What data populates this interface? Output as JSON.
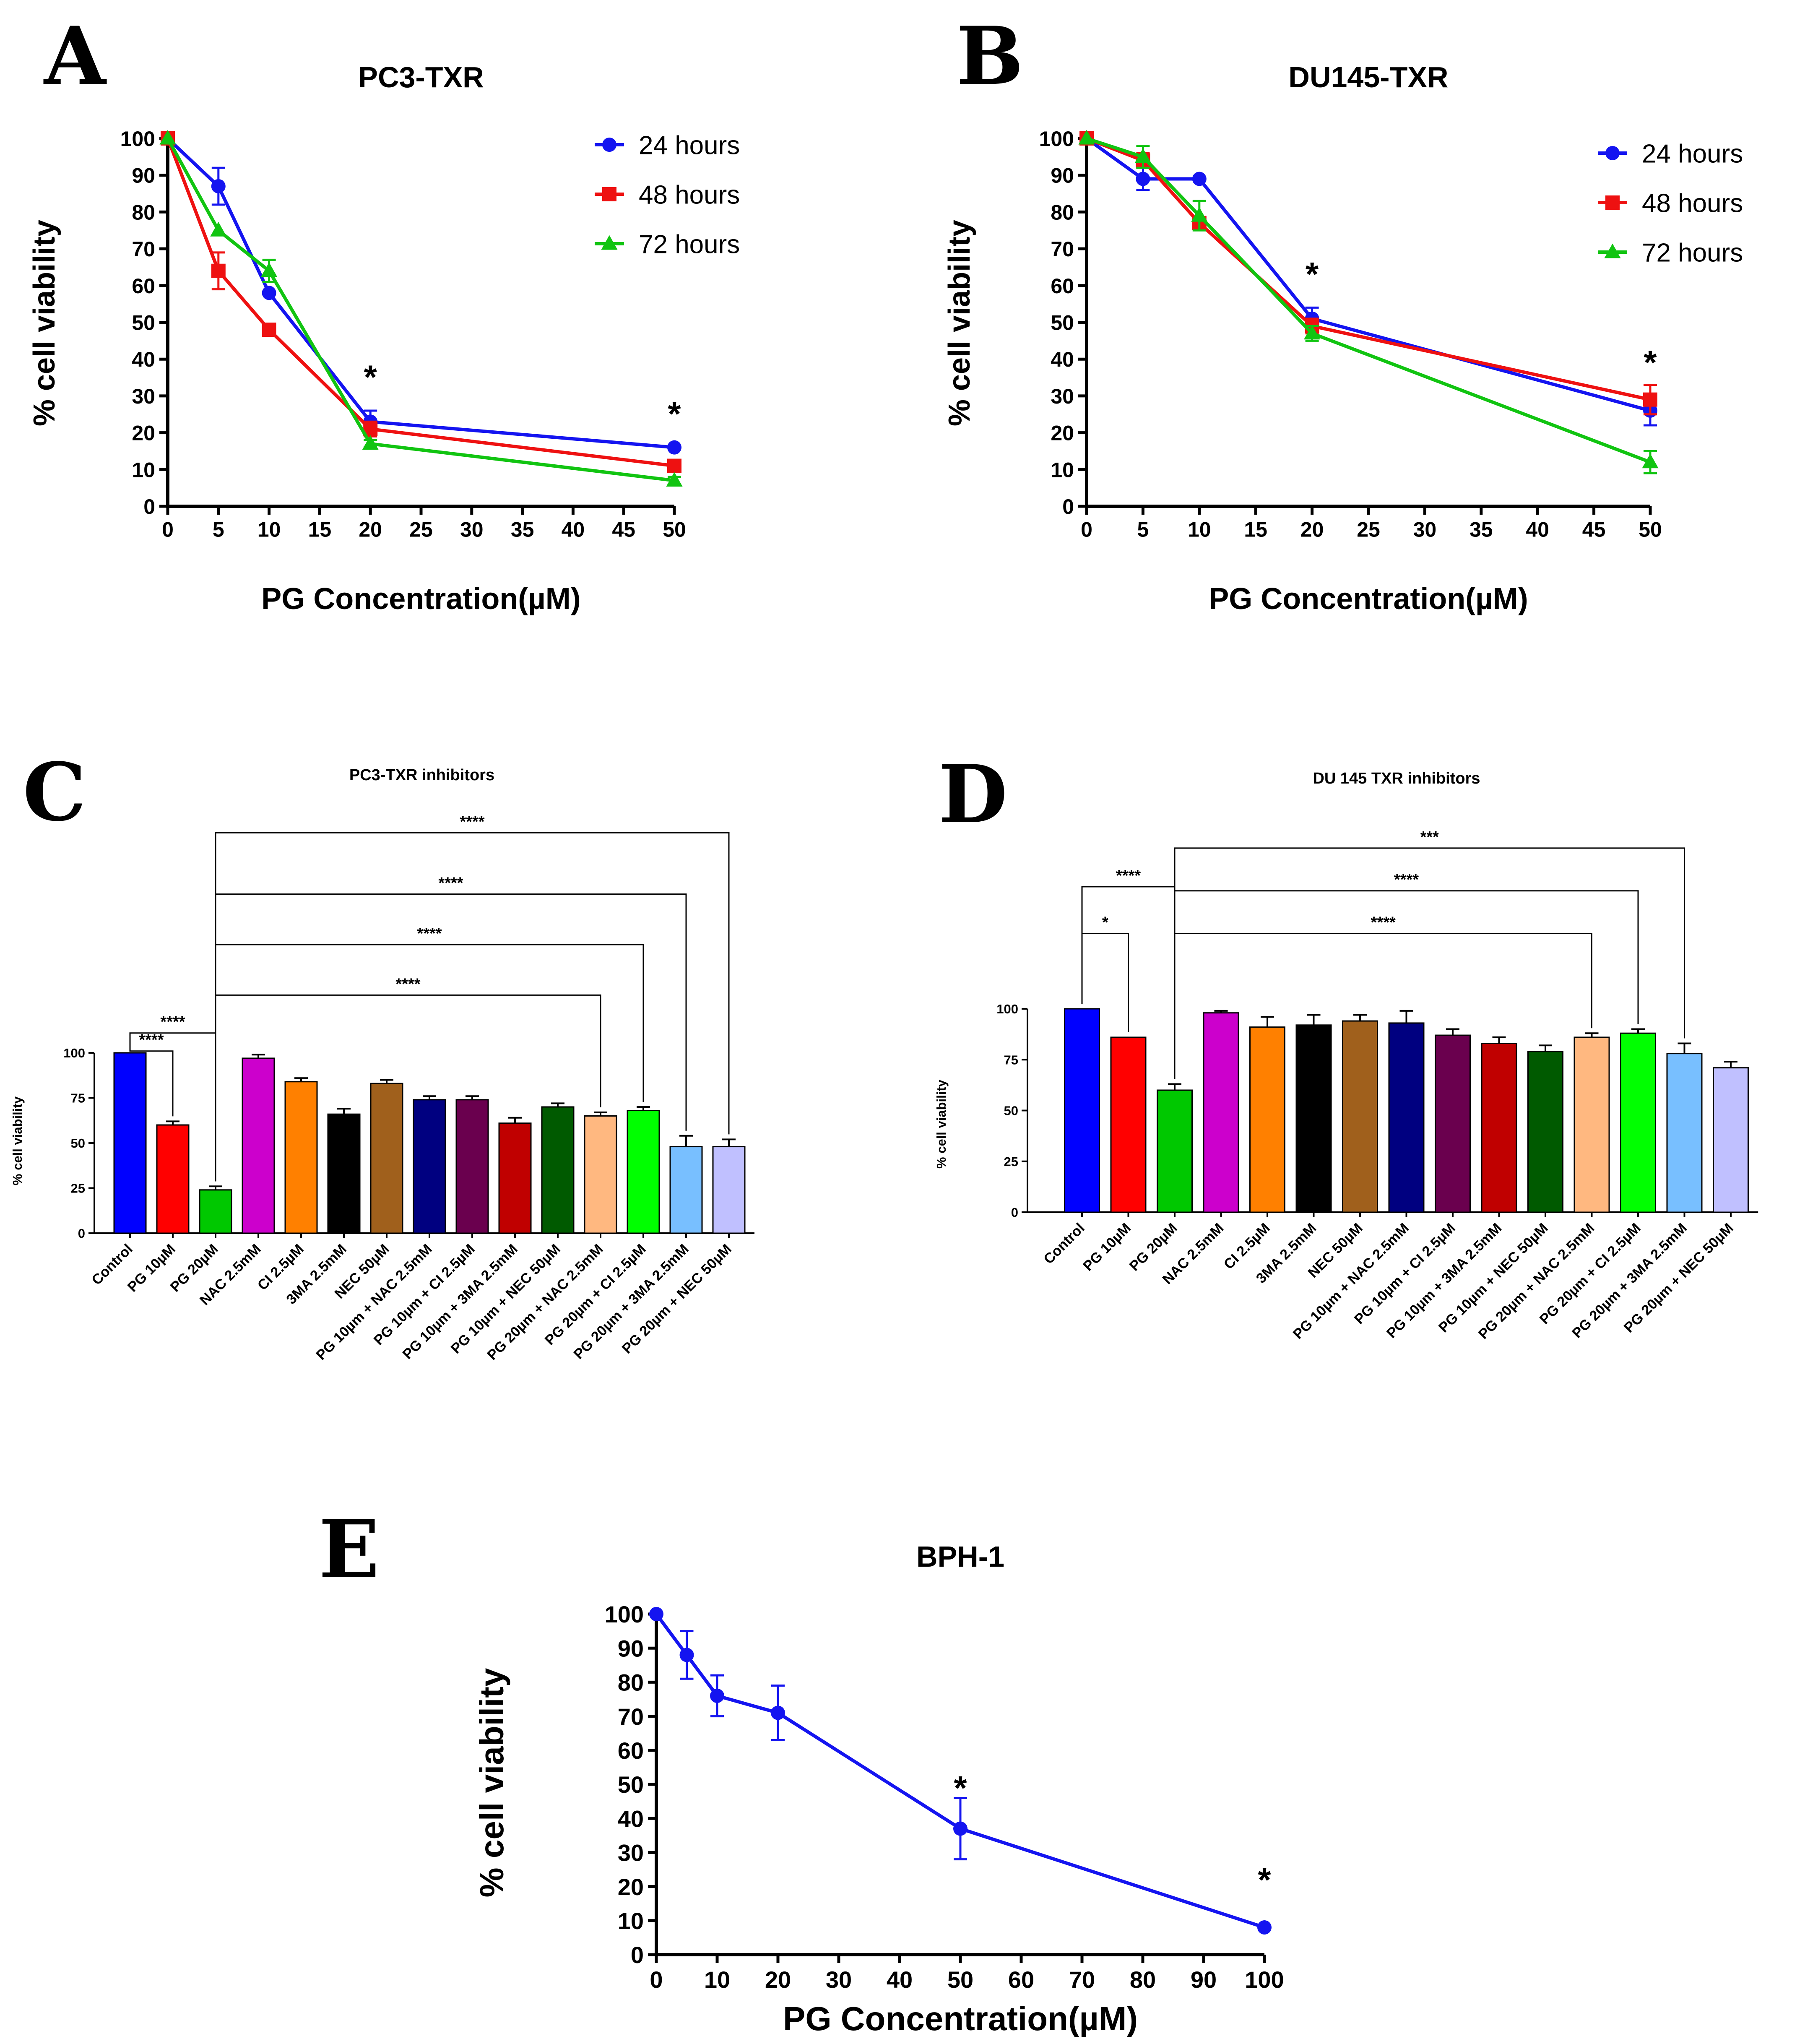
{
  "colors": {
    "h24": "#1414f0",
    "h48": "#ee1111",
    "h72": "#11c411",
    "bars": [
      "#0000ff",
      "#ff0000",
      "#00c800",
      "#cc00cc",
      "#ff8000",
      "#000000",
      "#a0601c",
      "#000080",
      "#6a004e",
      "#c00000",
      "#005a00",
      "#ffb880",
      "#00ff00",
      "#78bfff",
      "#c0c0ff"
    ]
  },
  "chart_data": [
    {
      "id": "A",
      "panel": "A",
      "type": "line",
      "title": "PC3-TXR",
      "xlabel": "PG Concentration(µM)",
      "ylabel": "% cell viability",
      "xlim": [
        0,
        50
      ],
      "ylim": [
        0,
        100
      ],
      "xticks": [
        0,
        5,
        10,
        15,
        20,
        25,
        30,
        35,
        40,
        45,
        50
      ],
      "yticks": [
        0,
        10,
        20,
        30,
        40,
        50,
        60,
        70,
        80,
        90,
        100
      ],
      "legend_position": "top-right",
      "series": [
        {
          "name": "24 hours",
          "marker": "circle",
          "color_key": "h24",
          "x": [
            0,
            5,
            10,
            20,
            50
          ],
          "y": [
            100,
            87,
            58,
            23,
            16
          ],
          "err": [
            0,
            5,
            0,
            3,
            0
          ]
        },
        {
          "name": "48 hours",
          "marker": "square",
          "color_key": "h48",
          "x": [
            0,
            5,
            10,
            20,
            50
          ],
          "y": [
            100,
            64,
            48,
            21,
            11
          ],
          "err": [
            0,
            5,
            0,
            2,
            0
          ]
        },
        {
          "name": "72 hours",
          "marker": "triangle",
          "color_key": "h72",
          "x": [
            0,
            5,
            10,
            20,
            50
          ],
          "y": [
            100,
            75,
            64,
            17,
            7
          ],
          "err": [
            0,
            0,
            3,
            1,
            1
          ]
        }
      ],
      "annotations": [
        {
          "text": "*",
          "x": 20,
          "y": 37
        },
        {
          "text": "*",
          "x": 50,
          "y": 27
        }
      ]
    },
    {
      "id": "B",
      "panel": "B",
      "type": "line",
      "title": "DU145-TXR",
      "xlabel": "PG Concentration(µM)",
      "ylabel": "% cell viability",
      "xlim": [
        0,
        50
      ],
      "ylim": [
        0,
        100
      ],
      "xticks": [
        0,
        5,
        10,
        15,
        20,
        25,
        30,
        35,
        40,
        45,
        50
      ],
      "yticks": [
        0,
        10,
        20,
        30,
        40,
        50,
        60,
        70,
        80,
        90,
        100
      ],
      "legend_position": "top-right",
      "series": [
        {
          "name": "24 hours",
          "marker": "circle",
          "color_key": "h24",
          "x": [
            0,
            5,
            10,
            20,
            50
          ],
          "y": [
            100,
            89,
            89,
            51,
            26
          ],
          "err": [
            0,
            3,
            0,
            3,
            4
          ]
        },
        {
          "name": "48 hours",
          "marker": "square",
          "color_key": "h48",
          "x": [
            0,
            5,
            10,
            20,
            50
          ],
          "y": [
            100,
            94,
            77,
            49,
            29
          ],
          "err": [
            0,
            2,
            0,
            2,
            4
          ]
        },
        {
          "name": "72 hours",
          "marker": "triangle",
          "color_key": "h72",
          "x": [
            0,
            5,
            10,
            20,
            50
          ],
          "y": [
            100,
            95,
            79,
            47,
            12
          ],
          "err": [
            0,
            3,
            4,
            2,
            3
          ]
        }
      ],
      "annotations": [
        {
          "text": "*",
          "x": 20,
          "y": 65
        },
        {
          "text": "*",
          "x": 50,
          "y": 41
        }
      ]
    },
    {
      "id": "C",
      "panel": "C",
      "type": "bar",
      "title": "PC3-TXR inhibitors",
      "ylabel": "% cell viability",
      "ylim": [
        0,
        100
      ],
      "yticks": [
        0,
        25,
        50,
        75,
        100
      ],
      "categories": [
        "Control",
        "PG 10µM",
        "PG 20µM",
        "NAC 2.5mM",
        "CI 2.5µM",
        "3MA 2.5mM",
        "NEC 50µM",
        "PG 10µm + NAC 2.5mM",
        "PG 10µm + CI 2.5µM",
        "PG 10µm + 3MA 2.5mM",
        "PG 10µm + NEC 50µM",
        "PG 20µm + NAC 2.5mM",
        "PG 20µm + CI 2.5µM",
        "PG 20µm + 3MA 2.5mM",
        "PG 20µm + NEC 50µM"
      ],
      "values": [
        100,
        60,
        24,
        97,
        84,
        66,
        83,
        74,
        74,
        61,
        70,
        65,
        68,
        48,
        48
      ],
      "errors": [
        0,
        2,
        2,
        2,
        2,
        3,
        2,
        2,
        2,
        3,
        2,
        2,
        2,
        6,
        4
      ],
      "brackets": [
        {
          "from": 0,
          "to": 1,
          "label": "****",
          "level": 101
        },
        {
          "from": 0,
          "to": 2,
          "label": "****",
          "level": 111
        },
        {
          "from": 2,
          "to": 11,
          "label": "****",
          "level": 132
        },
        {
          "from": 2,
          "to": 12,
          "label": "****",
          "level": 160
        },
        {
          "from": 2,
          "to": 13,
          "label": "****",
          "level": 188
        },
        {
          "from": 2,
          "to": 14,
          "label": "****",
          "level": 222
        }
      ]
    },
    {
      "id": "D",
      "panel": "D",
      "type": "bar",
      "title": "DU 145 TXR inhibitors",
      "ylabel": "% cell viability",
      "ylim": [
        0,
        100
      ],
      "yticks": [
        0,
        25,
        50,
        75,
        100
      ],
      "categories": [
        "Control",
        "PG 10µM",
        "PG 20µM",
        "NAC 2.5mM",
        "CI 2.5µM",
        "3MA 2.5mM",
        "NEC 50µM",
        "PG 10µm + NAC 2.5mM",
        "PG 10µm + CI 2.5µM",
        "PG 10µm + 3MA 2.5mM",
        "PG 10µm + NEC 50µM",
        "PG 20µm + NAC 2.5mM",
        "PG 20µm + CI 2.5µM",
        "PG 20µm + 3MA 2.5mM",
        "PG 20µm + NEC 50µM"
      ],
      "values": [
        100,
        86,
        60,
        98,
        91,
        92,
        94,
        93,
        87,
        83,
        79,
        86,
        88,
        78,
        71
      ],
      "errors": [
        0,
        0,
        3,
        1,
        5,
        5,
        3,
        6,
        3,
        3,
        3,
        2,
        2,
        5,
        3
      ],
      "brackets": [
        {
          "from": 0,
          "to": 1,
          "label": "*",
          "level": 137
        },
        {
          "from": 0,
          "to": 2,
          "label": "****",
          "level": 160
        },
        {
          "from": 2,
          "to": 11,
          "label": "****",
          "level": 137
        },
        {
          "from": 2,
          "to": 12,
          "label": "****",
          "level": 158
        },
        {
          "from": 2,
          "to": 13,
          "label": "***",
          "level": 179
        }
      ]
    },
    {
      "id": "E",
      "panel": "E",
      "type": "line",
      "title": "BPH-1",
      "xlabel": "PG Concentration(µM)",
      "ylabel": "% cell viability",
      "xlim": [
        0,
        100
      ],
      "ylim": [
        0,
        100
      ],
      "xticks": [
        0,
        10,
        20,
        30,
        40,
        50,
        60,
        70,
        80,
        90,
        100
      ],
      "yticks": [
        0,
        10,
        20,
        30,
        40,
        50,
        60,
        70,
        80,
        90,
        100
      ],
      "series": [
        {
          "name": "BPH-1",
          "marker": "circle",
          "color_key": "h24",
          "x": [
            0,
            5,
            10,
            20,
            50,
            100
          ],
          "y": [
            100,
            88,
            76,
            71,
            37,
            8
          ],
          "err": [
            0,
            7,
            6,
            8,
            9,
            0
          ]
        }
      ],
      "annotations": [
        {
          "text": "*",
          "x": 50,
          "y": 51
        },
        {
          "text": "*",
          "x": 100,
          "y": 24
        }
      ]
    }
  ]
}
